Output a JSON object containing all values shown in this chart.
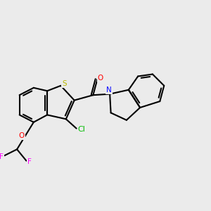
{
  "background_color": "#ebebeb",
  "figsize": [
    3.0,
    3.0
  ],
  "dpi": 100,
  "bond_color": "#000000",
  "bond_lw": 1.5,
  "atom_colors": {
    "S": "#b8b800",
    "N": "#0000ff",
    "O": "#ff0000",
    "F": "#ff00ff",
    "Cl": "#00bb00",
    "C": "#000000"
  },
  "font_size": 7.5
}
